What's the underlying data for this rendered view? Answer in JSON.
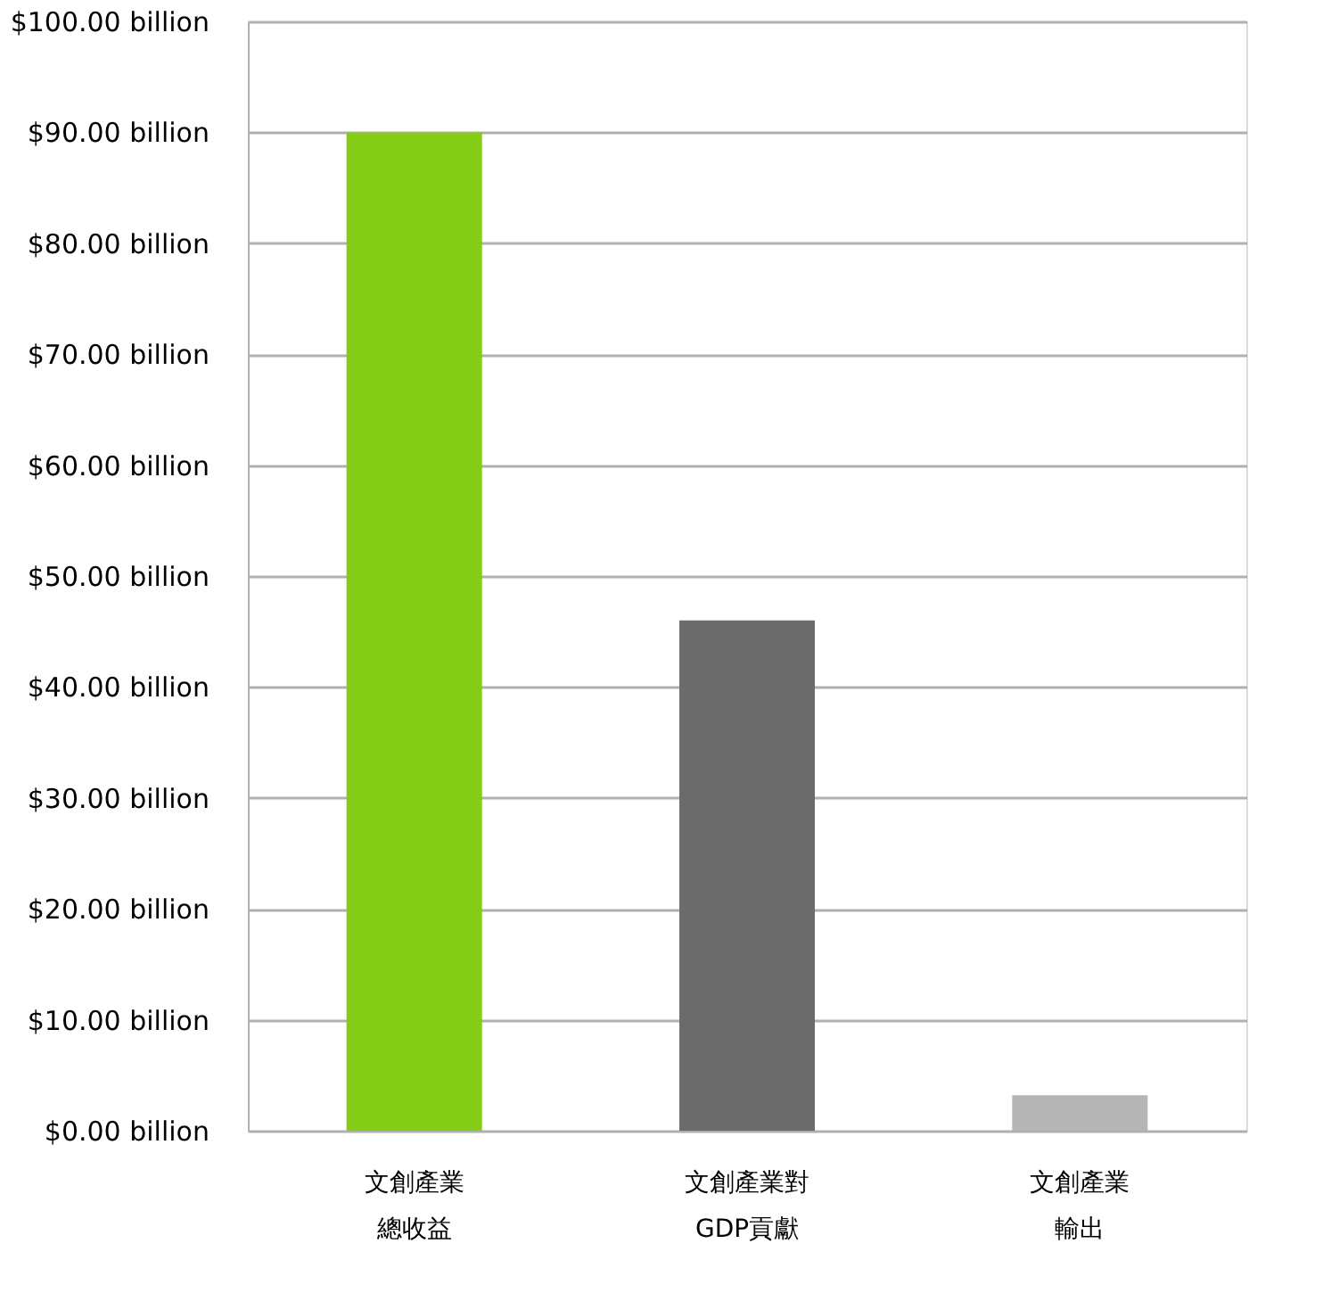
{
  "chart_data": {
    "type": "bar",
    "categories": [
      "文創產業總收益",
      "文創產業對GDP貢獻",
      "文創產業輸出"
    ],
    "values": [
      90,
      46,
      3.2
    ],
    "colors": [
      "#84cc16",
      "#6b6b6b",
      "#b5b5b5"
    ],
    "ylim": [
      0,
      100
    ],
    "yticks": [
      {
        "value": 0,
        "label": "$0.00 billion"
      },
      {
        "value": 10,
        "label": "$10.00 billion"
      },
      {
        "value": 20,
        "label": "$20.00 billion"
      },
      {
        "value": 30,
        "label": "$30.00 billion"
      },
      {
        "value": 40,
        "label": "$40.00 billion"
      },
      {
        "value": 50,
        "label": "$50.00 billion"
      },
      {
        "value": 60,
        "label": "$60.00 billion"
      },
      {
        "value": 70,
        "label": "$70.00 billion"
      },
      {
        "value": 80,
        "label": "$80.00 billion"
      },
      {
        "value": 90,
        "label": "$90.00 billion"
      },
      {
        "value": 100,
        "label": "$100.00 billion"
      }
    ],
    "grid": "y"
  }
}
